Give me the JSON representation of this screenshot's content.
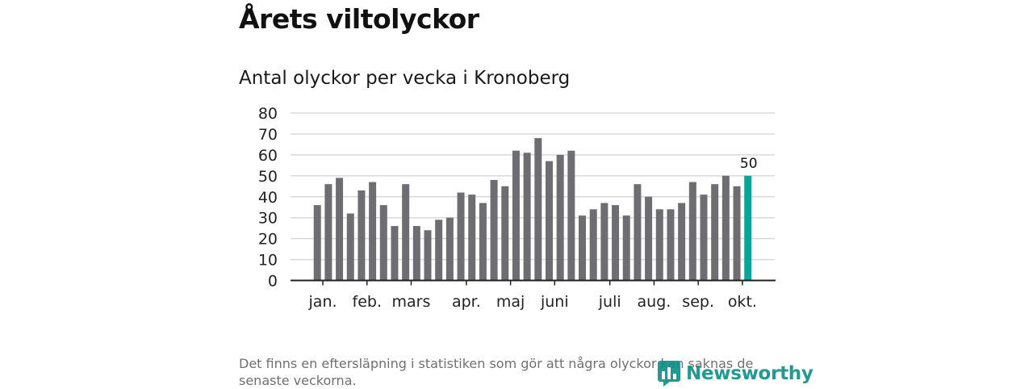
{
  "title": "Årets viltolyckor",
  "subtitle": "Antal olyckor per vecka i Kronoberg",
  "footnote": "Det finns en eftersläpning i statistiken som gör att några olyckor kan saknas de senaste veckorna.",
  "brand": "Newsworthy",
  "colors": {
    "bar": "#6e6e72",
    "highlight": "#0aa59a",
    "grid": "#d9d9d9",
    "axis": "#222222"
  },
  "chart_data": {
    "type": "bar",
    "title": "Antal olyckor per vecka i Kronoberg",
    "xlabel": "",
    "ylabel": "",
    "ylim": [
      0,
      80
    ],
    "yticks": [
      0,
      10,
      20,
      30,
      40,
      50,
      60,
      70,
      80
    ],
    "grid": true,
    "weeks": [
      1,
      2,
      3,
      4,
      5,
      6,
      7,
      8,
      9,
      10,
      11,
      12,
      13,
      14,
      15,
      16,
      17,
      18,
      19,
      20,
      21,
      22,
      23,
      24,
      25,
      26,
      27,
      28,
      29,
      30,
      31,
      32,
      33,
      34,
      35,
      36,
      37,
      38,
      39,
      40
    ],
    "values": [
      36,
      46,
      49,
      32,
      43,
      47,
      36,
      26,
      46,
      26,
      24,
      29,
      30,
      42,
      41,
      37,
      48,
      45,
      62,
      61,
      68,
      57,
      60,
      62,
      31,
      34,
      37,
      36,
      31,
      46,
      40,
      34,
      34,
      37,
      47,
      41,
      46,
      50,
      45,
      50
    ],
    "highlight_index": 39,
    "highlight_label": "50",
    "month_labels": [
      {
        "label": "jan.",
        "week": 1.5
      },
      {
        "label": "feb.",
        "week": 5.5
      },
      {
        "label": "mars",
        "week": 9.5
      },
      {
        "label": "apr.",
        "week": 14.5
      },
      {
        "label": "maj",
        "week": 18.5
      },
      {
        "label": "juni",
        "week": 22.5
      },
      {
        "label": "juli",
        "week": 27.5
      },
      {
        "label": "aug.",
        "week": 31.5
      },
      {
        "label": "sep.",
        "week": 35.5
      },
      {
        "label": "okt.",
        "week": 39.5
      }
    ]
  }
}
